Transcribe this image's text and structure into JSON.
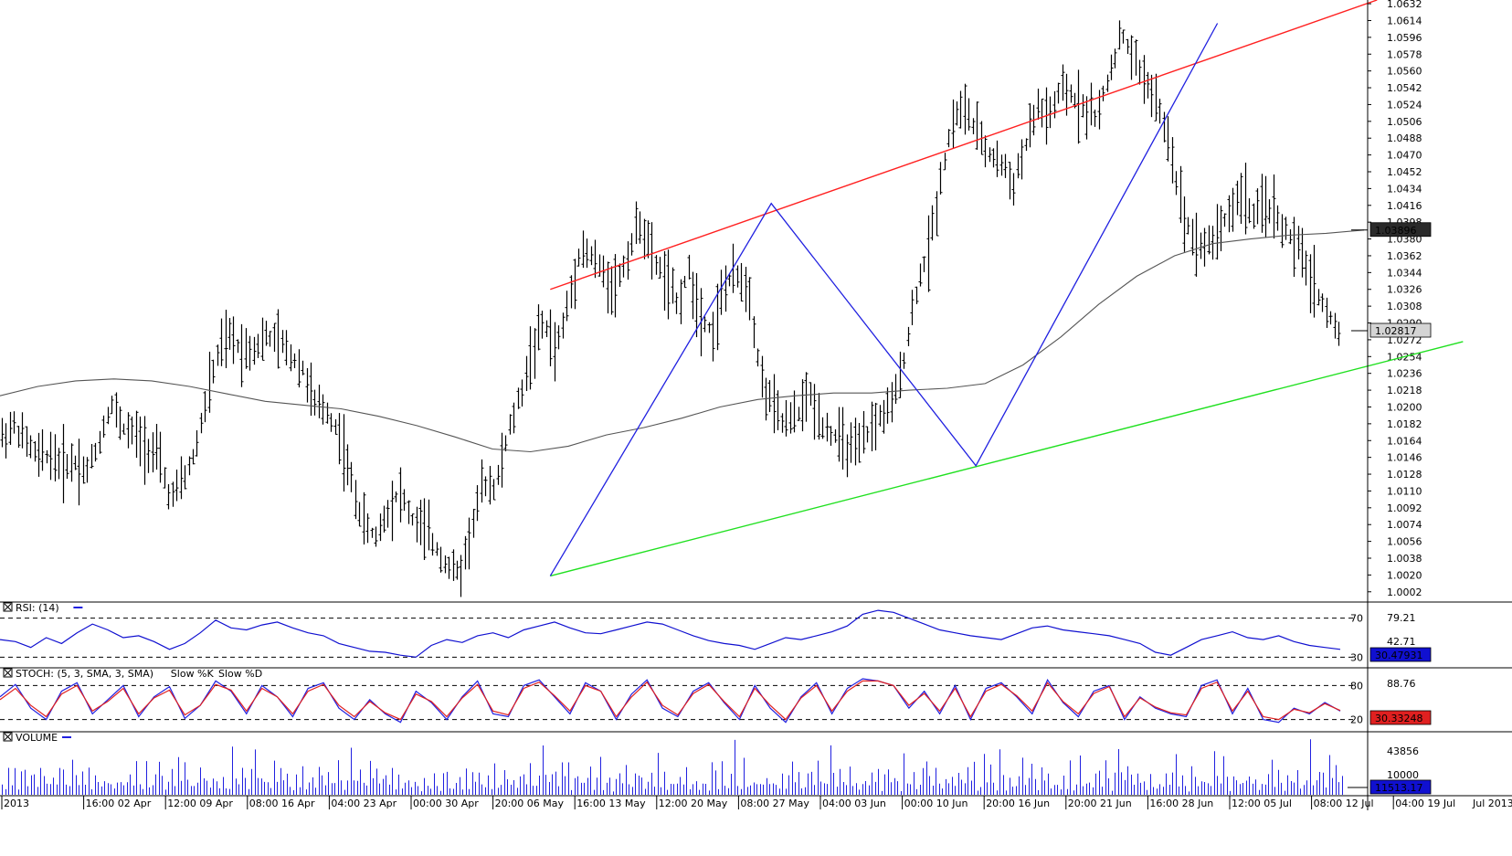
{
  "chart_data": [
    {
      "type": "ohlc",
      "x_tick_labels": [
        "2013",
        "16:00 02 Apr",
        "12:00 09 Apr",
        "08:00 16 Apr",
        "04:00 23 Apr",
        "00:00 30 Apr",
        "20:00 06 May",
        "16:00 13 May",
        "12:00 20 May",
        "08:00 27 May",
        "04:00 03 Jun",
        "00:00 10 Jun",
        "20:00 16 Jun",
        "20:00 21 Jun",
        "16:00 28 Jun",
        "12:00 05 Jul",
        "08:00 12 Jul",
        "04:00 19 Jul",
        "Jul 2013"
      ],
      "y_tick_labels": [
        "1.0632",
        "1.0614",
        "1.0596",
        "1.0578",
        "1.0560",
        "1.0542",
        "1.0524",
        "1.0506",
        "1.0488",
        "1.0470",
        "1.0452",
        "1.0434",
        "1.0416",
        "1.0398",
        "1.0380",
        "1.0362",
        "1.0344",
        "1.0326",
        "1.0308",
        "1.0290",
        "1.0272",
        "1.0254",
        "1.0236",
        "1.0218",
        "1.0200",
        "1.0182",
        "1.0164",
        "1.0146",
        "1.0128",
        "1.0110",
        "1.0092",
        "1.0074",
        "1.0056",
        "1.0038",
        "1.0020",
        "1.0002"
      ],
      "ylim": [
        0.9992,
        1.0636
      ],
      "price_path": [
        1.0168,
        1.018,
        1.0162,
        1.0145,
        1.015,
        1.0138,
        1.0142,
        1.013,
        1.016,
        1.0205,
        1.0178,
        1.017,
        1.0158,
        1.0145,
        1.01,
        1.012,
        1.015,
        1.021,
        1.026,
        1.0275,
        1.026,
        1.0265,
        1.0275,
        1.027,
        1.0255,
        1.024,
        1.02,
        1.0195,
        1.017,
        1.012,
        1.0075,
        1.006,
        1.009,
        1.011,
        1.008,
        1.007,
        1.005,
        1.003,
        1.002,
        1.007,
        1.012,
        1.0115,
        1.017,
        1.021,
        1.026,
        1.029,
        1.026,
        1.031,
        1.037,
        1.036,
        1.034,
        1.033,
        1.0365,
        1.04,
        1.036,
        1.034,
        1.031,
        1.0345,
        1.03,
        1.028,
        1.033,
        1.034,
        1.033,
        1.023,
        1.02,
        1.018,
        1.019,
        1.0215,
        1.0185,
        1.017,
        1.016,
        1.015,
        1.0175,
        1.019,
        1.02,
        1.026,
        1.033,
        1.037,
        1.045,
        1.051,
        1.052,
        1.049,
        1.047,
        1.046,
        1.044,
        1.048,
        1.052,
        1.051,
        1.054,
        1.053,
        1.052,
        1.051,
        1.056,
        1.06,
        1.057,
        1.055,
        1.052,
        1.048,
        1.041,
        1.038,
        1.037,
        1.039,
        1.041,
        1.043,
        1.04,
        1.042,
        1.04,
        1.038,
        1.036,
        1.033,
        1.03,
        1.028
      ],
      "moving_average_path": [
        1.0212,
        1.0222,
        1.0228,
        1.023,
        1.0228,
        1.0222,
        1.0214,
        1.0206,
        1.0202,
        1.0198,
        1.019,
        1.018,
        1.0168,
        1.0155,
        1.0152,
        1.0158,
        1.017,
        1.0178,
        1.0188,
        1.02,
        1.0208,
        1.0212,
        1.0215,
        1.0215,
        1.0218,
        1.022,
        1.0225,
        1.0245,
        1.0275,
        1.031,
        1.034,
        1.0362,
        1.0375,
        1.038,
        1.0384,
        1.0386,
        1.03896
      ],
      "channel_upper": {
        "from": [
          6.7,
          1.0326
        ],
        "to": [
          16.8,
          1.0636
        ]
      },
      "channel_lower": {
        "from": [
          6.7,
          1.0019
        ],
        "to": [
          17.85,
          1.027
        ]
      },
      "zigzag": [
        [
          6.7,
          1.0019
        ],
        [
          9.4,
          1.0418
        ],
        [
          11.9,
          1.0137
        ],
        [
          14.85,
          1.0611
        ]
      ],
      "markers": [
        {
          "label": "1.03896",
          "value": 1.03896,
          "color": "#2a2a2a"
        },
        {
          "label": "1.02817",
          "value": 1.02817,
          "color": "#d4d4d4"
        }
      ],
      "colors": {
        "price": "#000000",
        "moving_average": "#555555",
        "channel_upper": "#ff2020",
        "channel_lower": "#20e020",
        "zigzag": "#2020e0"
      },
      "grid": false
    },
    {
      "type": "line",
      "title": "RSI: (14)",
      "series": [
        {
          "name": "RSI",
          "color": "#1010d0",
          "values": [
            48,
            46,
            40,
            50,
            44,
            55,
            64,
            58,
            50,
            52,
            46,
            38,
            44,
            55,
            68,
            60,
            58,
            63,
            66,
            60,
            55,
            52,
            44,
            40,
            36,
            35,
            32,
            30,
            42,
            48,
            45,
            52,
            55,
            50,
            58,
            62,
            66,
            60,
            55,
            54,
            58,
            62,
            66,
            64,
            58,
            52,
            47,
            44,
            42,
            38,
            44,
            50,
            48,
            52,
            56,
            62,
            74,
            78,
            76,
            70,
            64,
            58,
            55,
            52,
            50,
            48,
            54,
            60,
            62,
            58,
            56,
            54,
            52,
            48,
            44,
            35,
            32,
            40,
            48,
            52,
            56,
            50,
            48,
            52,
            46,
            42,
            40,
            38
          ]
        }
      ],
      "ylim": [
        20,
        80
      ],
      "levels": [
        70,
        30
      ],
      "level_labels": [
        "70",
        "30"
      ],
      "y_tick_labels": [
        "79.21",
        "42.71"
      ],
      "markers": [
        {
          "label": "30.47931",
          "value": 30.47931
        }
      ]
    },
    {
      "type": "line",
      "title": "STOCH: (5, 3, SMA, 3, SMA)",
      "series": [
        {
          "name": "Slow %K",
          "color": "#2020e0",
          "values": [
            60,
            82,
            40,
            20,
            70,
            85,
            30,
            55,
            80,
            25,
            60,
            78,
            22,
            45,
            88,
            70,
            30,
            80,
            60,
            25,
            75,
            85,
            40,
            20,
            55,
            30,
            15,
            70,
            50,
            20,
            60,
            88,
            30,
            25,
            80,
            90,
            60,
            30,
            85,
            70,
            20,
            65,
            90,
            40,
            25,
            70,
            85,
            50,
            20,
            80,
            40,
            15,
            60,
            85,
            30,
            75,
            92,
            88,
            80,
            40,
            70,
            30,
            80,
            20,
            75,
            85,
            60,
            30,
            90,
            50,
            25,
            70,
            80,
            20,
            60,
            40,
            30,
            25,
            80,
            90,
            30,
            75,
            20,
            15,
            40,
            30,
            50,
            35
          ]
        },
        {
          "name": "Slow %D",
          "color": "#e02020",
          "values": [
            55,
            75,
            45,
            25,
            65,
            80,
            35,
            52,
            75,
            30,
            58,
            72,
            28,
            45,
            82,
            72,
            35,
            75,
            60,
            30,
            70,
            82,
            45,
            25,
            52,
            32,
            20,
            65,
            52,
            25,
            58,
            82,
            35,
            28,
            75,
            86,
            62,
            35,
            80,
            70,
            25,
            60,
            86,
            45,
            28,
            66,
            82,
            52,
            25,
            75,
            45,
            20,
            58,
            80,
            35,
            70,
            88,
            88,
            80,
            45,
            66,
            35,
            75,
            25,
            70,
            82,
            62,
            35,
            85,
            52,
            30,
            66,
            78,
            25,
            58,
            42,
            32,
            28,
            75,
            86,
            35,
            70,
            25,
            20,
            38,
            32,
            48,
            36
          ]
        }
      ],
      "ylim": [
        0,
        100
      ],
      "levels": [
        80,
        20
      ],
      "level_labels": [
        "80",
        "20"
      ],
      "y_tick_labels": [
        "88.76"
      ],
      "markers": [
        {
          "label": "30.33248",
          "value": 30.33248
        }
      ]
    },
    {
      "type": "bar",
      "title": "VOLUME",
      "series": [
        {
          "name": "VOLUME",
          "color": "#2020e0"
        }
      ],
      "ylim": [
        0,
        50000
      ],
      "y_tick_labels": [
        "43856",
        "10000"
      ],
      "markers": [
        {
          "label": "11513.17",
          "value": 11513.17
        }
      ],
      "note_values_pattern": [
        14000,
        9000,
        20000,
        12000,
        25000,
        8000,
        17000,
        30000,
        11000,
        22000,
        15000,
        7000,
        35000,
        18000,
        10000,
        26000,
        13000,
        9000,
        21000,
        45000,
        16000,
        12000,
        28000,
        19000,
        8000,
        31000,
        14000,
        24000,
        11000,
        17000
      ]
    }
  ]
}
